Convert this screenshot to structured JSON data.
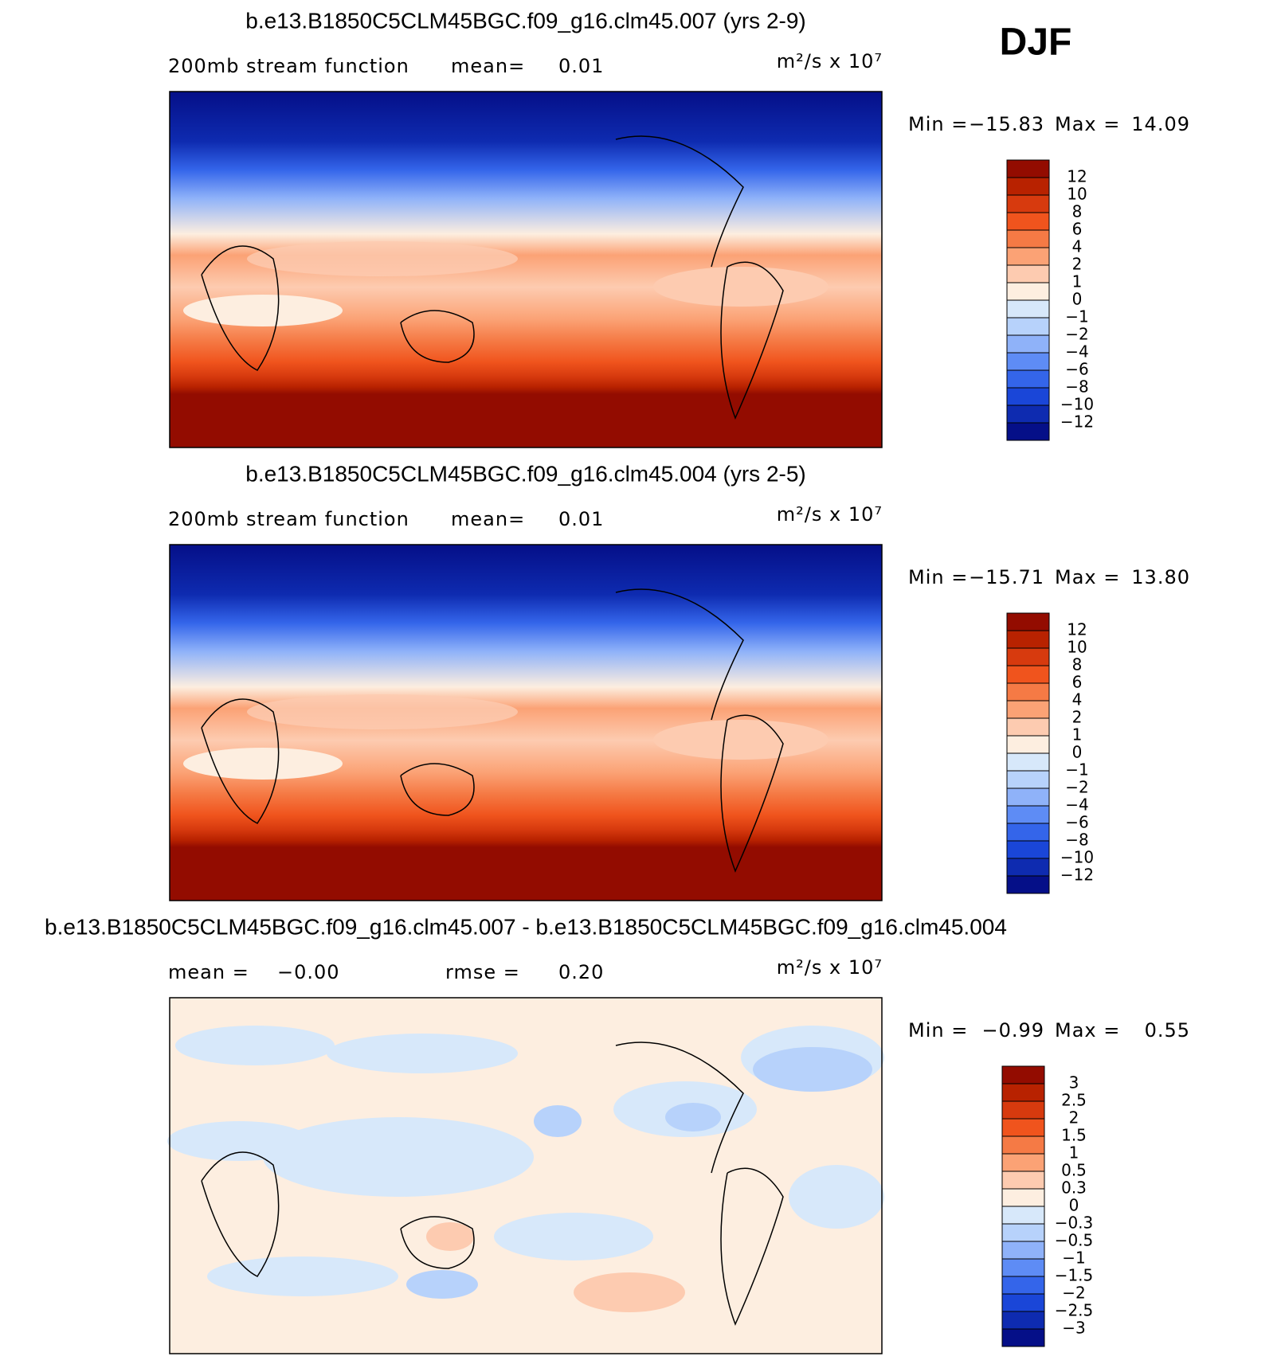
{
  "header": {
    "season": "DJF"
  },
  "panels": [
    {
      "title": "b.e13.B1850C5CLM45BGC.f09_g16.clm45.007 (yrs 2-9)",
      "subtitle_items": [
        "200mb  stream  function",
        "mean=",
        "0.01"
      ],
      "units": "m²/s x 10⁷",
      "min_label": "Min =",
      "min_value": "−15.83",
      "max_label": "Max =",
      "max_value": "14.09",
      "colorbar": {
        "labels": [
          "12",
          "10",
          "8",
          "6",
          "4",
          "2",
          "1",
          "0",
          "−1",
          "−2",
          "−4",
          "−6",
          "−8",
          "−10",
          "−12"
        ],
        "colors": [
          "#930c00",
          "#b82200",
          "#d73a0e",
          "#f0541d",
          "#f57a45",
          "#fba275",
          "#fdcbb0",
          "#fdeee0",
          "#d7e8fa",
          "#b7d2fb",
          "#8fb2f9",
          "#5e8cf5",
          "#3465ea",
          "#1a46d8",
          "#0e2bb0",
          "#050f88"
        ]
      }
    },
    {
      "title": "b.e13.B1850C5CLM45BGC.f09_g16.clm45.004 (yrs 2-5)",
      "subtitle_items": [
        "200mb  stream  function",
        "mean=",
        "0.01"
      ],
      "units": "m²/s x 10⁷",
      "min_label": "Min =",
      "min_value": "−15.71",
      "max_label": "Max =",
      "max_value": "13.80",
      "colorbar": {
        "labels": [
          "12",
          "10",
          "8",
          "6",
          "4",
          "2",
          "1",
          "0",
          "−1",
          "−2",
          "−4",
          "−6",
          "−8",
          "−10",
          "−12"
        ],
        "colors": [
          "#930c00",
          "#b82200",
          "#d73a0e",
          "#f0541d",
          "#f57a45",
          "#fba275",
          "#fdcbb0",
          "#fdeee0",
          "#d7e8fa",
          "#b7d2fb",
          "#8fb2f9",
          "#5e8cf5",
          "#3465ea",
          "#1a46d8",
          "#0e2bb0",
          "#050f88"
        ]
      }
    },
    {
      "title": "b.e13.B1850C5CLM45BGC.f09_g16.clm45.007 - b.e13.B1850C5CLM45BGC.f09_g16.clm45.004",
      "subtitle_items": [
        "mean =",
        "−0.00",
        "rmse =",
        "0.20"
      ],
      "units": "m²/s x 10⁷",
      "min_label": "Min =",
      "min_value": "−0.99",
      "max_label": "Max =",
      "max_value": "0.55",
      "colorbar": {
        "labels": [
          "3",
          "2.5",
          "2",
          "1.5",
          "1",
          "0.5",
          "0.3",
          "0",
          "−0.3",
          "−0.5",
          "−1",
          "−1.5",
          "−2",
          "−2.5",
          "−3"
        ],
        "colors": [
          "#930c00",
          "#b82200",
          "#d73a0e",
          "#f0541d",
          "#f57a45",
          "#fba275",
          "#fdcbb0",
          "#fdeee0",
          "#d7e8fa",
          "#b7d2fb",
          "#8fb2f9",
          "#5e8cf5",
          "#3465ea",
          "#1a46d8",
          "#0e2bb0",
          "#050f88"
        ]
      }
    }
  ]
}
